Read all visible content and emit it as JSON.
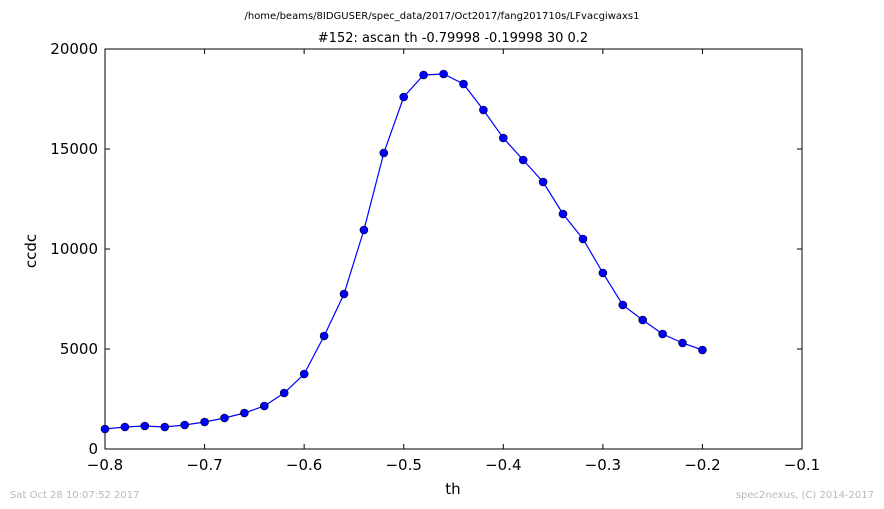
{
  "chart_data": {
    "type": "line",
    "suptitle": "/home/beams/8IDGUSER/spec_data/2017/Oct2017/fang201710s/LFvacgiwaxs1",
    "title": "#152: ascan  th -0.79998 -0.19998  30 0.2",
    "xlabel": "th",
    "ylabel": "ccdc",
    "xlim": [
      -0.8,
      -0.1
    ],
    "ylim": [
      0,
      20000
    ],
    "xticks": [
      -0.8,
      -0.7,
      -0.6,
      -0.5,
      -0.4,
      -0.3,
      -0.2,
      -0.1
    ],
    "xtick_labels": [
      "−0.8",
      "−0.7",
      "−0.6",
      "−0.5",
      "−0.4",
      "−0.3",
      "−0.2",
      "−0.1"
    ],
    "yticks": [
      0,
      5000,
      10000,
      15000,
      20000
    ],
    "ytick_labels": [
      "0",
      "5000",
      "10000",
      "15000",
      "20000"
    ],
    "grid": false,
    "line_color": "#0000ff",
    "marker_color": "#0000ff",
    "series": [
      {
        "x": [
          -0.79998,
          -0.77998,
          -0.75998,
          -0.73998,
          -0.71998,
          -0.69998,
          -0.67998,
          -0.65998,
          -0.63998,
          -0.61998,
          -0.59998,
          -0.57998,
          -0.55998,
          -0.53998,
          -0.51998,
          -0.49998,
          -0.47998,
          -0.45998,
          -0.43998,
          -0.41998,
          -0.39998,
          -0.37998,
          -0.35998,
          -0.33998,
          -0.31998,
          -0.29998,
          -0.27998,
          -0.25998,
          -0.23998,
          -0.21998,
          -0.19998
        ],
        "y": [
          1000,
          1100,
          1150,
          1100,
          1200,
          1350,
          1550,
          1800,
          2150,
          2800,
          3750,
          5650,
          7750,
          10950,
          14800,
          17600,
          18700,
          18750,
          18250,
          16950,
          15550,
          14450,
          13350,
          11750,
          10500,
          8800,
          7200,
          6450,
          5750,
          5300,
          4950
        ]
      }
    ]
  },
  "footer": {
    "timestamp": "Sat Oct 28 10:07:52 2017",
    "credit": "spec2nexus, (C) 2014-2017"
  }
}
